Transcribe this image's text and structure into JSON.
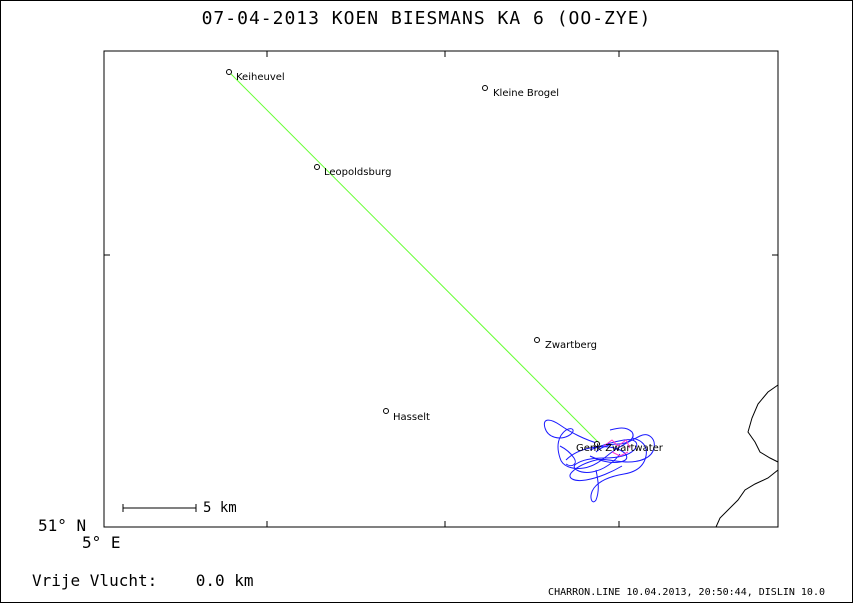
{
  "header": {
    "title": "07-04-2013   KOEN BIESMANS   KA 6 (OO-ZYE)"
  },
  "map": {
    "lat_label": "51° N",
    "lon_label": "5° E",
    "scale_label": "5 km",
    "towns": [
      {
        "name": "Keiheuvel"
      },
      {
        "name": "Kleine Brogel"
      },
      {
        "name": "Leopoldsburg"
      },
      {
        "name": "Zwartberg"
      },
      {
        "name": "Hasselt"
      },
      {
        "name": "Genk Zwartwater"
      }
    ],
    "colors": {
      "track": "#1a1aff",
      "line": "#66ff33",
      "marker": "#ff33cc",
      "border": "#000000"
    }
  },
  "footer": {
    "distance": "Vrije Vlucht:    0.0 km",
    "credit": "CHARRON.LINE 10.04.2013, 20:50:44, DISLIN 10.0"
  }
}
